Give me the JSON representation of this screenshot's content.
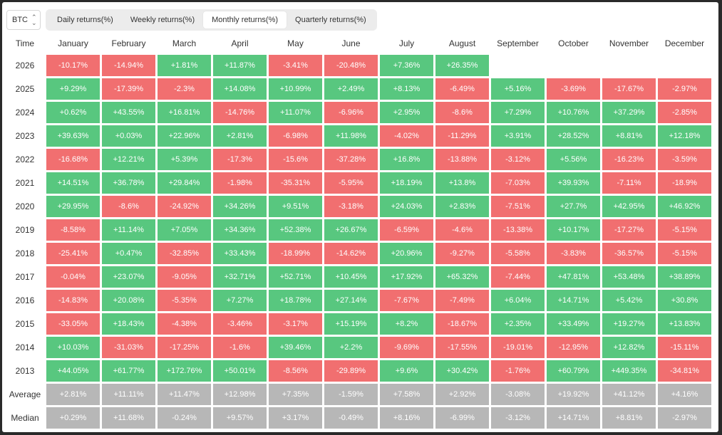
{
  "asset": "BTC",
  "tabs": [
    "Daily returns(%)",
    "Weekly returns(%)",
    "Monthly returns(%)",
    "Quarterly returns(%)"
  ],
  "active_tab": "Monthly returns(%)",
  "colors": {
    "positive": "#58c77f",
    "negative": "#f16f70",
    "summary": "#b7b7b7"
  },
  "table": {
    "corner_label": "Time",
    "months": [
      "January",
      "February",
      "March",
      "April",
      "May",
      "June",
      "July",
      "August",
      "September",
      "October",
      "November",
      "December"
    ],
    "rows": [
      {
        "year": "2026",
        "values": [
          "-10.17%",
          "-14.94%",
          "+1.81%",
          "+11.87%",
          "-3.41%",
          "-20.48%",
          "+7.36%",
          "+26.35%",
          "",
          "",
          "",
          ""
        ]
      },
      {
        "year": "2025",
        "values": [
          "+9.29%",
          "-17.39%",
          "-2.3%",
          "+14.08%",
          "+10.99%",
          "+2.49%",
          "+8.13%",
          "-6.49%",
          "+5.16%",
          "-3.69%",
          "-17.67%",
          "-2.97%"
        ]
      },
      {
        "year": "2024",
        "values": [
          "+0.62%",
          "+43.55%",
          "+16.81%",
          "-14.76%",
          "+11.07%",
          "-6.96%",
          "+2.95%",
          "-8.6%",
          "+7.29%",
          "+10.76%",
          "+37.29%",
          "-2.85%"
        ]
      },
      {
        "year": "2023",
        "values": [
          "+39.63%",
          "+0.03%",
          "+22.96%",
          "+2.81%",
          "-6.98%",
          "+11.98%",
          "-4.02%",
          "-11.29%",
          "+3.91%",
          "+28.52%",
          "+8.81%",
          "+12.18%"
        ]
      },
      {
        "year": "2022",
        "values": [
          "-16.68%",
          "+12.21%",
          "+5.39%",
          "-17.3%",
          "-15.6%",
          "-37.28%",
          "+16.8%",
          "-13.88%",
          "-3.12%",
          "+5.56%",
          "-16.23%",
          "-3.59%"
        ]
      },
      {
        "year": "2021",
        "values": [
          "+14.51%",
          "+36.78%",
          "+29.84%",
          "-1.98%",
          "-35.31%",
          "-5.95%",
          "+18.19%",
          "+13.8%",
          "-7.03%",
          "+39.93%",
          "-7.11%",
          "-18.9%"
        ]
      },
      {
        "year": "2020",
        "values": [
          "+29.95%",
          "-8.6%",
          "-24.92%",
          "+34.26%",
          "+9.51%",
          "-3.18%",
          "+24.03%",
          "+2.83%",
          "-7.51%",
          "+27.7%",
          "+42.95%",
          "+46.92%"
        ]
      },
      {
        "year": "2019",
        "values": [
          "-8.58%",
          "+11.14%",
          "+7.05%",
          "+34.36%",
          "+52.38%",
          "+26.67%",
          "-6.59%",
          "-4.6%",
          "-13.38%",
          "+10.17%",
          "-17.27%",
          "-5.15%"
        ]
      },
      {
        "year": "2018",
        "values": [
          "-25.41%",
          "+0.47%",
          "-32.85%",
          "+33.43%",
          "-18.99%",
          "-14.62%",
          "+20.96%",
          "-9.27%",
          "-5.58%",
          "-3.83%",
          "-36.57%",
          "-5.15%"
        ]
      },
      {
        "year": "2017",
        "values": [
          "-0.04%",
          "+23.07%",
          "-9.05%",
          "+32.71%",
          "+52.71%",
          "+10.45%",
          "+17.92%",
          "+65.32%",
          "-7.44%",
          "+47.81%",
          "+53.48%",
          "+38.89%"
        ]
      },
      {
        "year": "2016",
        "values": [
          "-14.83%",
          "+20.08%",
          "-5.35%",
          "+7.27%",
          "+18.78%",
          "+27.14%",
          "-7.67%",
          "-7.49%",
          "+6.04%",
          "+14.71%",
          "+5.42%",
          "+30.8%"
        ]
      },
      {
        "year": "2015",
        "values": [
          "-33.05%",
          "+18.43%",
          "-4.38%",
          "-3.46%",
          "-3.17%",
          "+15.19%",
          "+8.2%",
          "-18.67%",
          "+2.35%",
          "+33.49%",
          "+19.27%",
          "+13.83%"
        ]
      },
      {
        "year": "2014",
        "values": [
          "+10.03%",
          "-31.03%",
          "-17.25%",
          "-1.6%",
          "+39.46%",
          "+2.2%",
          "-9.69%",
          "-17.55%",
          "-19.01%",
          "-12.95%",
          "+12.82%",
          "-15.11%"
        ]
      },
      {
        "year": "2013",
        "values": [
          "+44.05%",
          "+61.77%",
          "+172.76%",
          "+50.01%",
          "-8.56%",
          "-29.89%",
          "+9.6%",
          "+30.42%",
          "-1.76%",
          "+60.79%",
          "+449.35%",
          "-34.81%"
        ]
      }
    ],
    "summary_rows": [
      {
        "label": "Average",
        "values": [
          "+2.81%",
          "+11.11%",
          "+11.47%",
          "+12.98%",
          "+7.35%",
          "-1.59%",
          "+7.58%",
          "+2.92%",
          "-3.08%",
          "+19.92%",
          "+41.12%",
          "+4.16%"
        ]
      },
      {
        "label": "Median",
        "values": [
          "+0.29%",
          "+11.68%",
          "-0.24%",
          "+9.57%",
          "+3.17%",
          "-0.49%",
          "+8.16%",
          "-6.99%",
          "-3.12%",
          "+14.71%",
          "+8.81%",
          "-2.97%"
        ]
      }
    ]
  }
}
